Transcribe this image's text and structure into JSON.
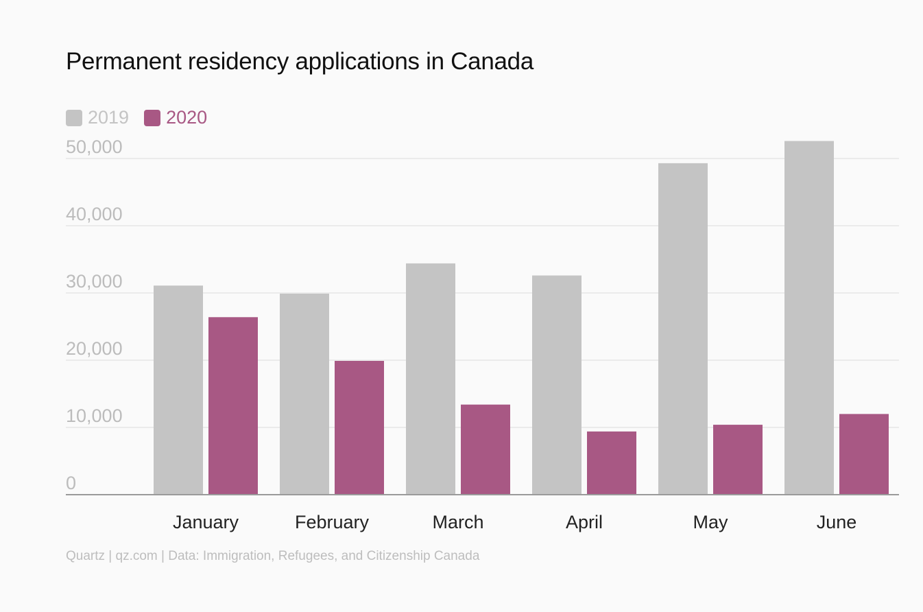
{
  "chart_data": {
    "type": "bar",
    "title": "Permanent residency applications in Canada",
    "categories": [
      "January",
      "February",
      "March",
      "April",
      "May",
      "June"
    ],
    "series": [
      {
        "name": "2019",
        "color": "#c4c4c4",
        "values": [
          31100,
          29900,
          34400,
          32600,
          49300,
          52600
        ]
      },
      {
        "name": "2020",
        "color": "#a85884",
        "values": [
          26400,
          19900,
          13400,
          9400,
          10400,
          12000
        ]
      }
    ],
    "yticks": [
      "0",
      "10,000",
      "20,000",
      "30,000",
      "40,000",
      "50,000"
    ],
    "ytick_values": [
      0,
      10000,
      20000,
      30000,
      40000,
      50000
    ],
    "ylim": [
      0,
      50000
    ],
    "grid": true,
    "legend_position": "top-left"
  },
  "footer": "Quartz | qz.com | Data: Immigration, Refugees, and Citizenship Canada"
}
